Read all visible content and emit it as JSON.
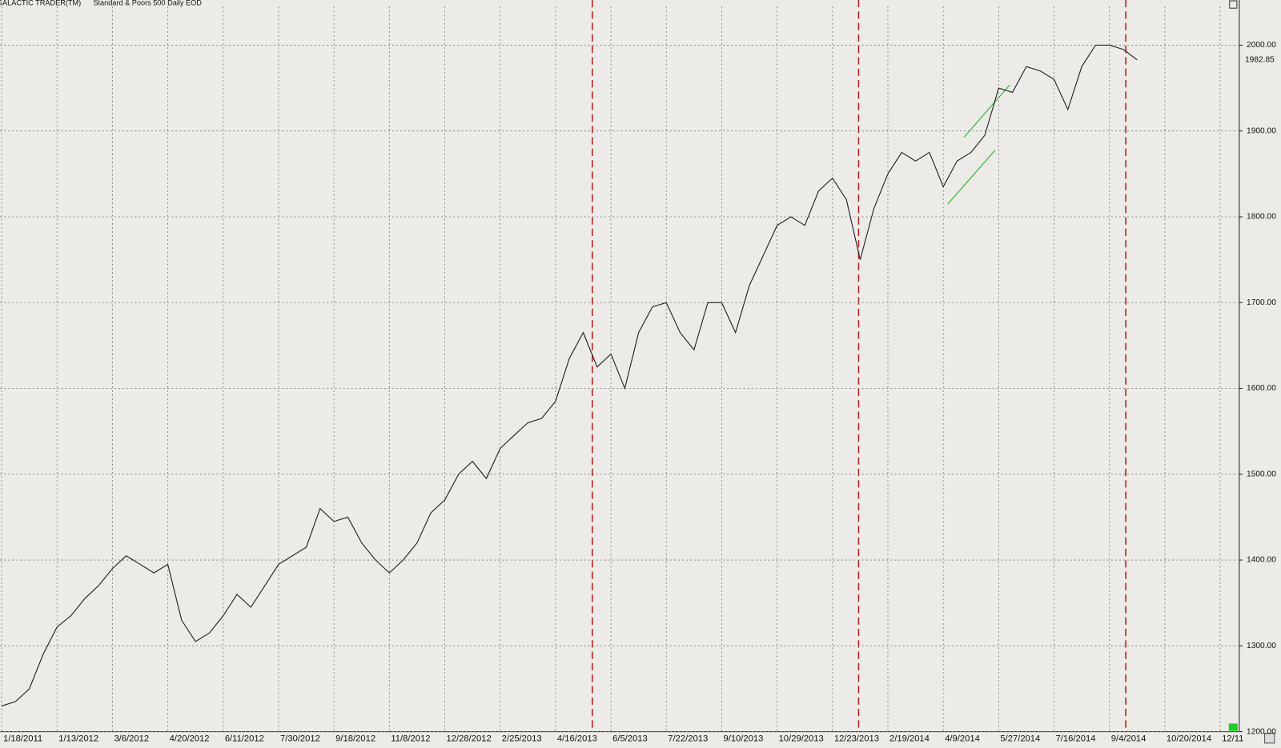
{
  "chart_data": {
    "type": "line",
    "title": "GALACTIC TRADER(TM)",
    "subtitle": "Standard & Poors 500 Daily EOD",
    "categories": [
      "1/18/2011",
      null,
      null,
      null,
      "1/13/2012",
      null,
      null,
      null,
      "3/6/2012",
      null,
      null,
      null,
      "4/20/2012",
      null,
      null,
      null,
      "6/11/2012",
      null,
      null,
      null,
      "7/30/2012",
      null,
      null,
      null,
      "9/18/2012",
      null,
      null,
      null,
      "11/8/2012",
      null,
      null,
      null,
      "12/28/2012",
      null,
      null,
      null,
      "2/25/2013",
      null,
      null,
      null,
      "4/16/2013",
      null,
      null,
      null,
      "6/5/2013",
      null,
      null,
      null,
      "7/22/2013",
      null,
      null,
      null,
      "9/10/2013",
      null,
      null,
      null,
      "10/29/2013",
      null,
      null,
      null,
      "12/23/2013",
      null,
      null,
      null,
      "2/19/2014",
      null,
      null,
      null,
      "4/9/2014",
      null,
      null,
      null,
      "5/27/2014",
      null,
      null,
      null,
      "7/16/2014",
      null,
      null,
      null,
      "9/4/2014",
      null,
      null,
      null,
      "10/20/2014",
      null,
      null,
      null,
      "12/11"
    ],
    "series": [
      {
        "name": "Standard & Poors 500",
        "color": "#222222",
        "values": [
          1230,
          1235,
          1250,
          1290,
          1322,
          1335,
          1355,
          1370,
          1390,
          1405,
          1395,
          1385,
          1395,
          1330,
          1305,
          1315,
          1335,
          1360,
          1345,
          1370,
          1395,
          1405,
          1415,
          1460,
          1445,
          1450,
          1420,
          1400,
          1385,
          1400,
          1420,
          1455,
          1470,
          1500,
          1515,
          1495,
          1530,
          1545,
          1560,
          1565,
          1585,
          1635,
          1665,
          1625,
          1640,
          1600,
          1665,
          1695,
          1700,
          1665,
          1645,
          1700,
          1700,
          1665,
          1720,
          1755,
          1790,
          1800,
          1790,
          1830,
          1845,
          1820,
          1750,
          1810,
          1850,
          1875,
          1865,
          1875,
          1835,
          1865,
          1875,
          1895,
          1950,
          1945,
          1975,
          1970,
          1960,
          1925,
          1975,
          2000,
          2000,
          1995,
          1982.85,
          null,
          null,
          null,
          null,
          null,
          null
        ],
        "value_labels": [
          null,
          null,
          null,
          null,
          null,
          null,
          null,
          null,
          null,
          null,
          null,
          null,
          null,
          null,
          null,
          null,
          null,
          null,
          null,
          null,
          null,
          null,
          null,
          null,
          null,
          null,
          null,
          null,
          null,
          null,
          null,
          null,
          null,
          null,
          null,
          null,
          null,
          null,
          null,
          null,
          null,
          null,
          null,
          null,
          null,
          null,
          null,
          null,
          null,
          null,
          null,
          null,
          null,
          null,
          null,
          null,
          null,
          null,
          null,
          null,
          null,
          null,
          null,
          null,
          null,
          null,
          null,
          null,
          null,
          null,
          null,
          null,
          null,
          null,
          null,
          null,
          null,
          null,
          null,
          null,
          null,
          null,
          "1982.85",
          null,
          null,
          null,
          null,
          null,
          null
        ]
      }
    ],
    "ylim": [
      1200,
      2045
    ],
    "yticks": [
      {
        "value": 1200,
        "label": "1200.00"
      },
      {
        "value": 1300,
        "label": "1300.00"
      },
      {
        "value": 1400,
        "label": "1400.00"
      },
      {
        "value": 1500,
        "label": "1500.00"
      },
      {
        "value": 1600,
        "label": "1600.00"
      },
      {
        "value": 1700,
        "label": "1700.00"
      },
      {
        "value": 1800,
        "label": "1800.00"
      },
      {
        "value": 1900,
        "label": "1900.00"
      },
      {
        "value": 2000,
        "label": "2000.00"
      }
    ],
    "grid": true
  }
}
